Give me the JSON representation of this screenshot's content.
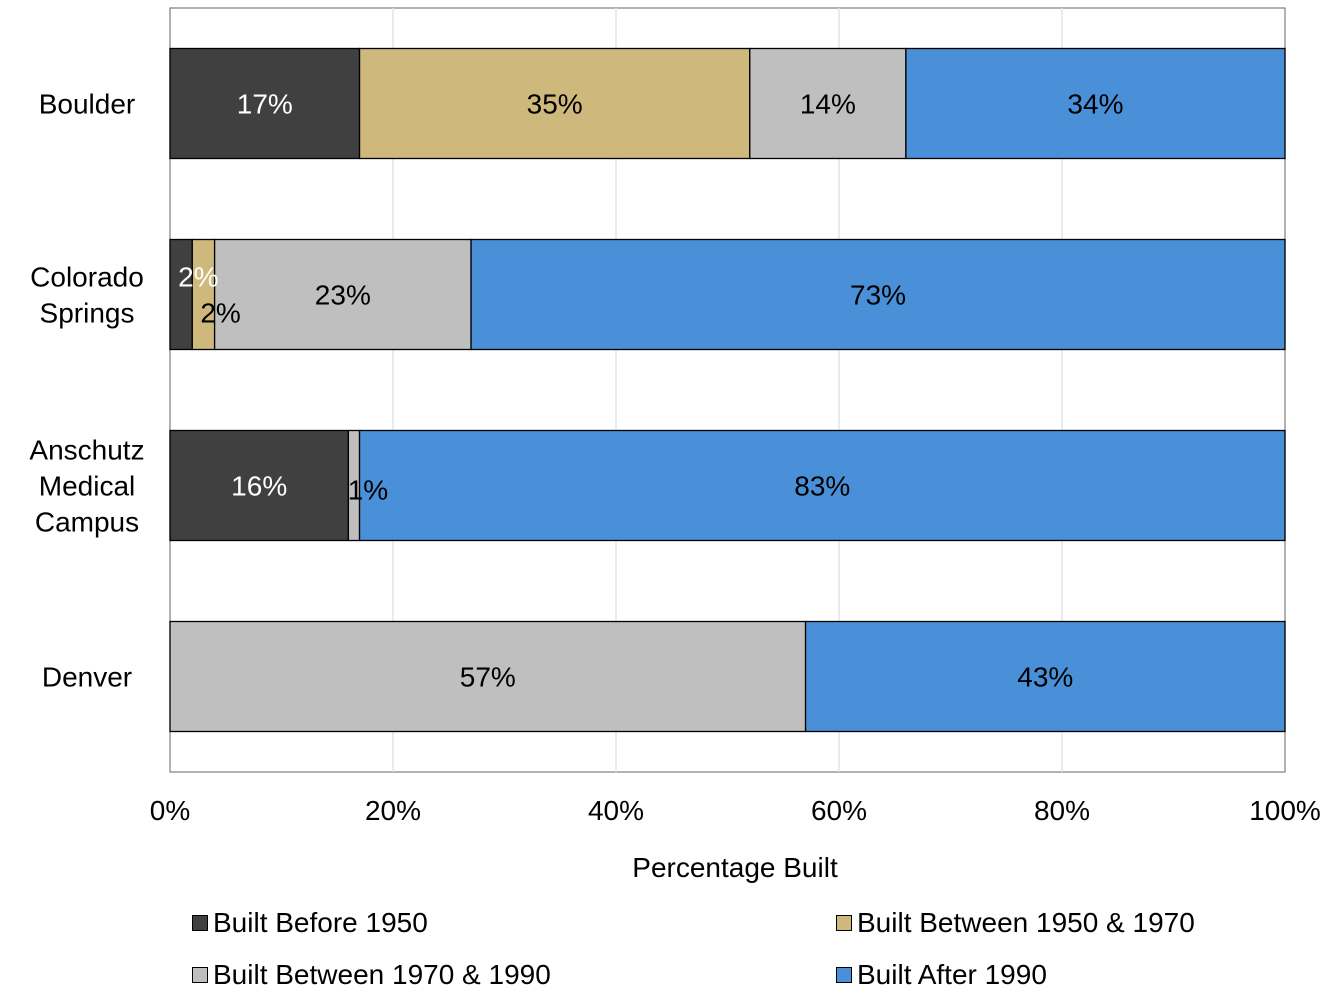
{
  "chart_data": {
    "type": "bar",
    "orientation": "horizontal",
    "stacked": "percent",
    "categories": [
      "Boulder",
      "Colorado Springs",
      "Anschutz Medical Campus",
      "Denver"
    ],
    "category_label_lines": [
      [
        "Boulder"
      ],
      [
        "Colorado",
        "Springs"
      ],
      [
        "Anschutz",
        "Medical",
        "Campus"
      ],
      [
        "Denver"
      ]
    ],
    "series": [
      {
        "name": "Built Before 1950",
        "color": "#404040",
        "label_color": "#ffffff",
        "values": [
          17,
          2,
          16,
          0
        ],
        "labels": [
          "17%",
          "2%",
          "16%",
          ""
        ]
      },
      {
        "name": "Built Between 1950 & 1970",
        "color": "#cfb87c",
        "label_color": "#000000",
        "values": [
          35,
          2,
          0,
          0
        ],
        "labels": [
          "35%",
          "2%",
          "",
          ""
        ]
      },
      {
        "name": "Built Between 1970 & 1990",
        "color": "#bfbfbf",
        "label_color": "#000000",
        "values": [
          14,
          23,
          1,
          57
        ],
        "labels": [
          "14%",
          "23%",
          "1%",
          "57%"
        ]
      },
      {
        "name": "Built After 1990",
        "color": "#4a90d9",
        "label_color": "#000000",
        "values": [
          34,
          73,
          83,
          43
        ],
        "labels": [
          "34%",
          "73%",
          "83%",
          "43%"
        ]
      }
    ],
    "xlabel": "Percentage Built",
    "ylabel": "",
    "xlim": [
      0,
      100
    ],
    "xticks": [
      "0%",
      "20%",
      "40%",
      "60%",
      "80%",
      "100%"
    ],
    "grid": "vertical",
    "legend_position": "bottom"
  }
}
